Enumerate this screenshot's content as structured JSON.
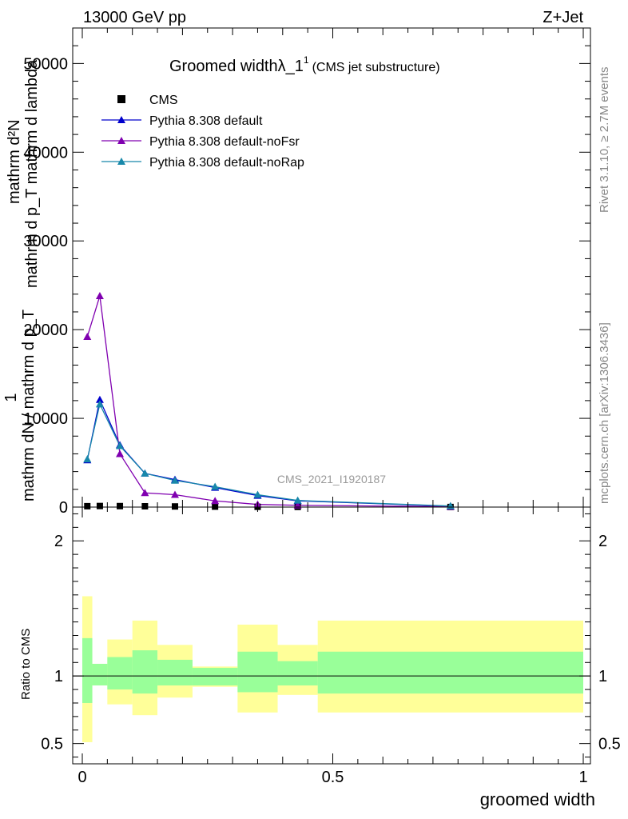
{
  "header": {
    "energy_label": "13000 GeV pp",
    "process_label": "Z+Jet",
    "side_right_top": "Rivet 3.1.10, ≥ 2.7M events",
    "side_right_bottom": "mcplots.cern.ch [arXiv:1306.3436]",
    "watermark": "CMS_2021_I1920187"
  },
  "chart_data": [
    {
      "panel": "main",
      "type": "line",
      "title": "Groomed widthλ_1",
      "title_superscript": "1",
      "subtitle": "(CMS jet substructure)",
      "ylabel_top": "mathrm d²N",
      "ylabel_bottom": "mathrm d p_T mathrm d lambda",
      "ylabel_prefix_top": "1",
      "ylabel_prefix_bottom": "mathrm dN / mathrm d p_T",
      "xlim": [
        0,
        1
      ],
      "ylim": [
        0,
        54000
      ],
      "y_ticks": [
        0,
        10000,
        20000,
        30000,
        40000,
        50000
      ],
      "y_tick_labels": [
        "0",
        "10000",
        "20000",
        "30000",
        "40000",
        "50000"
      ],
      "legend_position": "top-left",
      "bin_edges": [
        0.0,
        0.02,
        0.05,
        0.1,
        0.15,
        0.22,
        0.31,
        0.39,
        0.47,
        1.0
      ],
      "x": [
        0.01,
        0.035,
        0.075,
        0.125,
        0.185,
        0.265,
        0.35,
        0.43,
        0.735
      ],
      "series": [
        {
          "name": "CMS",
          "color": "#000000",
          "marker": "square",
          "values": [
            100,
            120,
            110,
            90,
            70,
            50,
            30,
            20,
            10
          ]
        },
        {
          "name": "Pythia 8.308 default",
          "color": "#0000cc",
          "marker": "triangle",
          "values": [
            5300,
            12100,
            7000,
            3800,
            3100,
            2200,
            1300,
            700,
            100
          ]
        },
        {
          "name": "Pythia 8.308 default-noFsr",
          "color": "#8000b0",
          "marker": "triangle",
          "values": [
            19200,
            23800,
            6000,
            1600,
            1400,
            700,
            300,
            200,
            50
          ]
        },
        {
          "name": "Pythia 8.308 default-noRap",
          "color": "#1888aa",
          "marker": "triangle",
          "values": [
            5400,
            11600,
            6900,
            3800,
            3000,
            2300,
            1400,
            750,
            120
          ]
        }
      ]
    },
    {
      "panel": "ratio",
      "type": "area",
      "ylabel": "Ratio to CMS",
      "xlabel": "groomed width",
      "xlim": [
        0,
        1
      ],
      "ylim": [
        0.35,
        2.25
      ],
      "y_ticks": [
        0.5,
        1,
        2
      ],
      "y_tick_labels": [
        "0.5",
        "1",
        "2"
      ],
      "x_ticks": [
        0,
        0.5,
        1
      ],
      "x_tick_labels": [
        "0",
        "0.5",
        "1"
      ],
      "bin_edges": [
        0.0,
        0.02,
        0.05,
        0.1,
        0.15,
        0.22,
        0.31,
        0.39,
        0.47,
        1.0
      ],
      "reference_line": 1,
      "bands": [
        {
          "color": "#ffff99",
          "low": [
            0.51,
            0.93,
            0.79,
            0.71,
            0.84,
            0.92,
            0.73,
            0.86,
            0.73
          ],
          "high": [
            1.59,
            1.09,
            1.27,
            1.41,
            1.23,
            1.07,
            1.38,
            1.23,
            1.41
          ]
        },
        {
          "color": "#99ff99",
          "low": [
            0.8,
            0.93,
            0.9,
            0.87,
            0.93,
            0.93,
            0.88,
            0.93,
            0.87
          ],
          "high": [
            1.28,
            1.09,
            1.14,
            1.19,
            1.12,
            1.06,
            1.18,
            1.11,
            1.18
          ]
        }
      ]
    }
  ]
}
